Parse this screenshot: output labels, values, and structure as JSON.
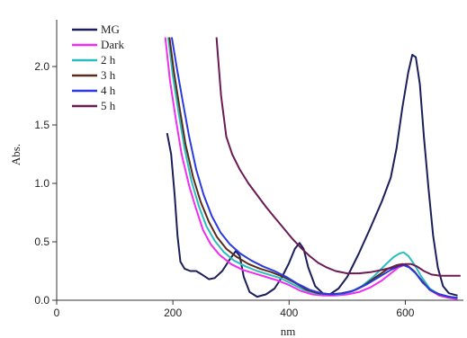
{
  "chart_data": {
    "type": "line",
    "xlabel": "nm",
    "ylabel": "Abs.",
    "xlim": [
      0,
      700
    ],
    "ylim": [
      0,
      2.4
    ],
    "x_ticks": [
      0,
      200,
      400,
      600
    ],
    "x_tick_labels": [
      "0",
      "200",
      "400",
      "600"
    ],
    "y_ticks": [
      0.0,
      0.5,
      1.0,
      1.5,
      2.0
    ],
    "y_tick_labels": [
      "0.0",
      "0.5",
      "1.0",
      "1.5",
      "2.0"
    ],
    "grid": false,
    "legend_position": "top-left",
    "series": [
      {
        "name": "MG",
        "color": "#1a1f5c",
        "points": [
          [
            190,
            1.43
          ],
          [
            197,
            1.25
          ],
          [
            203,
            0.9
          ],
          [
            208,
            0.55
          ],
          [
            213,
            0.33
          ],
          [
            220,
            0.27
          ],
          [
            230,
            0.25
          ],
          [
            240,
            0.25
          ],
          [
            250,
            0.22
          ],
          [
            262,
            0.18
          ],
          [
            272,
            0.19
          ],
          [
            285,
            0.25
          ],
          [
            298,
            0.35
          ],
          [
            308,
            0.42
          ],
          [
            315,
            0.38
          ],
          [
            322,
            0.2
          ],
          [
            332,
            0.07
          ],
          [
            345,
            0.03
          ],
          [
            360,
            0.05
          ],
          [
            375,
            0.1
          ],
          [
            388,
            0.2
          ],
          [
            400,
            0.32
          ],
          [
            410,
            0.44
          ],
          [
            418,
            0.49
          ],
          [
            425,
            0.44
          ],
          [
            433,
            0.28
          ],
          [
            445,
            0.12
          ],
          [
            458,
            0.06
          ],
          [
            470,
            0.05
          ],
          [
            485,
            0.1
          ],
          [
            500,
            0.2
          ],
          [
            520,
            0.4
          ],
          [
            540,
            0.62
          ],
          [
            560,
            0.85
          ],
          [
            575,
            1.05
          ],
          [
            585,
            1.3
          ],
          [
            595,
            1.65
          ],
          [
            605,
            1.95
          ],
          [
            612,
            2.1
          ],
          [
            618,
            2.08
          ],
          [
            625,
            1.85
          ],
          [
            632,
            1.4
          ],
          [
            640,
            0.95
          ],
          [
            648,
            0.55
          ],
          [
            656,
            0.28
          ],
          [
            665,
            0.12
          ],
          [
            675,
            0.06
          ],
          [
            690,
            0.04
          ]
        ]
      },
      {
        "name": "Dark",
        "color": "#f02df0",
        "points": [
          [
            187,
            2.25
          ],
          [
            195,
            1.88
          ],
          [
            205,
            1.55
          ],
          [
            215,
            1.25
          ],
          [
            228,
            0.98
          ],
          [
            240,
            0.78
          ],
          [
            252,
            0.6
          ],
          [
            265,
            0.48
          ],
          [
            280,
            0.39
          ],
          [
            300,
            0.31
          ],
          [
            320,
            0.26
          ],
          [
            340,
            0.23
          ],
          [
            360,
            0.2
          ],
          [
            380,
            0.17
          ],
          [
            400,
            0.13
          ],
          [
            420,
            0.08
          ],
          [
            440,
            0.05
          ],
          [
            460,
            0.04
          ],
          [
            480,
            0.04
          ],
          [
            500,
            0.05
          ],
          [
            520,
            0.07
          ],
          [
            540,
            0.11
          ],
          [
            560,
            0.17
          ],
          [
            575,
            0.23
          ],
          [
            588,
            0.28
          ],
          [
            597,
            0.3
          ],
          [
            605,
            0.29
          ],
          [
            615,
            0.25
          ],
          [
            628,
            0.17
          ],
          [
            642,
            0.09
          ],
          [
            658,
            0.04
          ],
          [
            675,
            0.02
          ],
          [
            690,
            0.01
          ]
        ]
      },
      {
        "name": "2 h",
        "color": "#2bbdbd",
        "points": [
          [
            192,
            2.25
          ],
          [
            200,
            1.92
          ],
          [
            210,
            1.6
          ],
          [
            220,
            1.3
          ],
          [
            232,
            1.02
          ],
          [
            245,
            0.8
          ],
          [
            258,
            0.63
          ],
          [
            272,
            0.51
          ],
          [
            288,
            0.41
          ],
          [
            305,
            0.34
          ],
          [
            325,
            0.29
          ],
          [
            345,
            0.25
          ],
          [
            365,
            0.22
          ],
          [
            385,
            0.19
          ],
          [
            405,
            0.14
          ],
          [
            425,
            0.09
          ],
          [
            445,
            0.06
          ],
          [
            465,
            0.05
          ],
          [
            485,
            0.05
          ],
          [
            505,
            0.07
          ],
          [
            525,
            0.12
          ],
          [
            545,
            0.2
          ],
          [
            565,
            0.3
          ],
          [
            580,
            0.37
          ],
          [
            590,
            0.4
          ],
          [
            597,
            0.41
          ],
          [
            605,
            0.38
          ],
          [
            615,
            0.31
          ],
          [
            628,
            0.2
          ],
          [
            642,
            0.1
          ],
          [
            658,
            0.05
          ],
          [
            675,
            0.03
          ],
          [
            690,
            0.02
          ]
        ]
      },
      {
        "name": "3 h",
        "color": "#5a2a1a",
        "points": [
          [
            194,
            2.25
          ],
          [
            202,
            1.95
          ],
          [
            212,
            1.63
          ],
          [
            222,
            1.33
          ],
          [
            235,
            1.05
          ],
          [
            248,
            0.84
          ],
          [
            262,
            0.67
          ],
          [
            276,
            0.54
          ],
          [
            292,
            0.44
          ],
          [
            310,
            0.37
          ],
          [
            330,
            0.31
          ],
          [
            350,
            0.27
          ],
          [
            370,
            0.24
          ],
          [
            390,
            0.2
          ],
          [
            410,
            0.15
          ],
          [
            430,
            0.09
          ],
          [
            450,
            0.06
          ],
          [
            470,
            0.05
          ],
          [
            490,
            0.06
          ],
          [
            510,
            0.08
          ],
          [
            530,
            0.13
          ],
          [
            550,
            0.2
          ],
          [
            570,
            0.27
          ],
          [
            585,
            0.3
          ],
          [
            595,
            0.31
          ],
          [
            605,
            0.29
          ],
          [
            615,
            0.25
          ],
          [
            628,
            0.17
          ],
          [
            642,
            0.09
          ],
          [
            658,
            0.05
          ],
          [
            675,
            0.03
          ],
          [
            690,
            0.02
          ]
        ]
      },
      {
        "name": "4 h",
        "color": "#2a3adf",
        "points": [
          [
            198,
            2.25
          ],
          [
            207,
            1.98
          ],
          [
            217,
            1.7
          ],
          [
            228,
            1.4
          ],
          [
            240,
            1.12
          ],
          [
            253,
            0.9
          ],
          [
            267,
            0.72
          ],
          [
            282,
            0.58
          ],
          [
            298,
            0.48
          ],
          [
            316,
            0.4
          ],
          [
            335,
            0.34
          ],
          [
            355,
            0.29
          ],
          [
            375,
            0.25
          ],
          [
            395,
            0.2
          ],
          [
            415,
            0.14
          ],
          [
            435,
            0.09
          ],
          [
            455,
            0.06
          ],
          [
            475,
            0.05
          ],
          [
            495,
            0.06
          ],
          [
            515,
            0.09
          ],
          [
            535,
            0.14
          ],
          [
            555,
            0.2
          ],
          [
            575,
            0.26
          ],
          [
            588,
            0.29
          ],
          [
            597,
            0.3
          ],
          [
            607,
            0.28
          ],
          [
            618,
            0.23
          ],
          [
            630,
            0.15
          ],
          [
            645,
            0.08
          ],
          [
            660,
            0.05
          ],
          [
            675,
            0.03
          ],
          [
            690,
            0.02
          ]
        ]
      },
      {
        "name": "5 h",
        "color": "#6a1a54",
        "points": [
          [
            275,
            2.25
          ],
          [
            283,
            1.75
          ],
          [
            292,
            1.4
          ],
          [
            302,
            1.25
          ],
          [
            315,
            1.12
          ],
          [
            330,
            1.0
          ],
          [
            345,
            0.9
          ],
          [
            360,
            0.8
          ],
          [
            375,
            0.71
          ],
          [
            390,
            0.62
          ],
          [
            405,
            0.53
          ],
          [
            420,
            0.45
          ],
          [
            435,
            0.38
          ],
          [
            450,
            0.32
          ],
          [
            465,
            0.28
          ],
          [
            480,
            0.25
          ],
          [
            500,
            0.23
          ],
          [
            520,
            0.23
          ],
          [
            540,
            0.24
          ],
          [
            560,
            0.26
          ],
          [
            578,
            0.28
          ],
          [
            590,
            0.3
          ],
          [
            600,
            0.31
          ],
          [
            610,
            0.31
          ],
          [
            620,
            0.29
          ],
          [
            632,
            0.25
          ],
          [
            645,
            0.22
          ],
          [
            660,
            0.21
          ],
          [
            680,
            0.21
          ],
          [
            695,
            0.21
          ]
        ]
      }
    ]
  }
}
